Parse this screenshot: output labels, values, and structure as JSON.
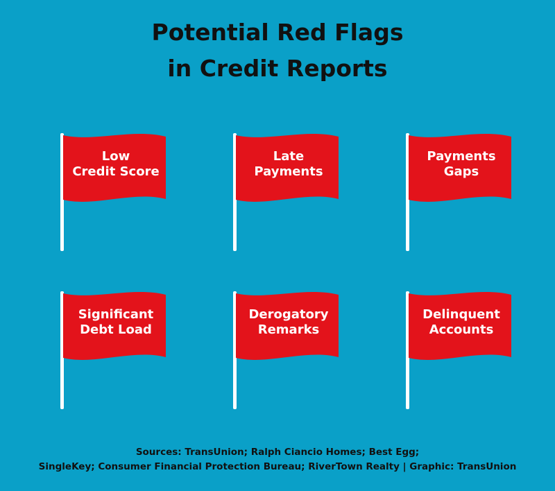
{
  "title": [
    "Potential Red Flags",
    "in Credit Reports"
  ],
  "flags": [
    {
      "label": [
        "Low",
        "Credit Score"
      ]
    },
    {
      "label": [
        "Late",
        "Payments"
      ]
    },
    {
      "label": [
        "Payments",
        "Gaps"
      ]
    },
    {
      "label": [
        "Significant",
        "Debt Load"
      ]
    },
    {
      "label": [
        "Derogatory",
        "Remarks"
      ]
    },
    {
      "label": [
        "Delinquent",
        "Accounts"
      ]
    }
  ],
  "sources": [
    "Sources: TransUnion; Ralph Ciancio Homes; Best Egg;",
    "SingleKey; Consumer Financial Protection Bureau; RiverTown Realty | Graphic: TransUnion"
  ]
}
